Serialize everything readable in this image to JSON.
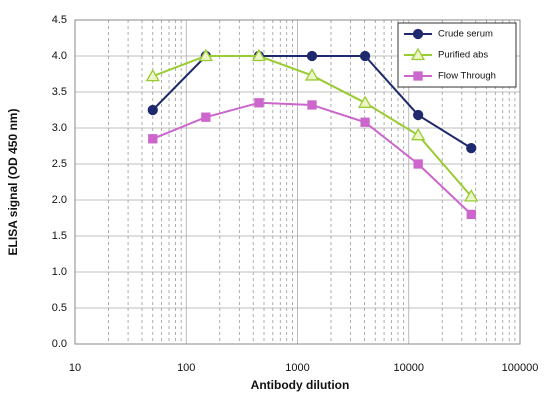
{
  "chart_data": {
    "type": "line",
    "xlabel": "Antibody dilution",
    "ylabel": "ELISA signal (OD 450 nm)",
    "x": [
      50,
      150,
      450,
      1350,
      4050,
      12150,
      36450
    ],
    "series": [
      {
        "name": "Crude serum",
        "color": "#1f2a6e",
        "marker": "circle",
        "values": [
          3.25,
          4.0,
          4.0,
          4.0,
          4.0,
          3.18,
          2.72
        ]
      },
      {
        "name": "Purified abs",
        "color": "#99cc33",
        "marker": "triangle",
        "values": [
          3.72,
          4.0,
          4.0,
          3.73,
          3.35,
          2.9,
          2.05
        ]
      },
      {
        "name": "Flow Through",
        "color": "#cc66cc",
        "marker": "square",
        "values": [
          2.85,
          3.15,
          3.35,
          3.32,
          3.08,
          2.5,
          1.8
        ]
      }
    ],
    "xlim": [
      10,
      100000
    ],
    "xticks": [
      10,
      100,
      1000,
      10000,
      100000
    ],
    "xscale": "log",
    "ylim": [
      0,
      4.5
    ],
    "yticks": [
      {
        "value": 0,
        "label": "0.0"
      },
      0.5,
      {
        "value": 1,
        "label": "1.0"
      },
      1.5,
      {
        "value": 2,
        "label": "2.0"
      },
      2.5,
      {
        "value": 3,
        "label": "3.0"
      },
      3.5,
      {
        "value": 4,
        "label": "4.0"
      },
      4.5
    ],
    "grid": true,
    "minor_grid": true,
    "legend": "upper right"
  }
}
